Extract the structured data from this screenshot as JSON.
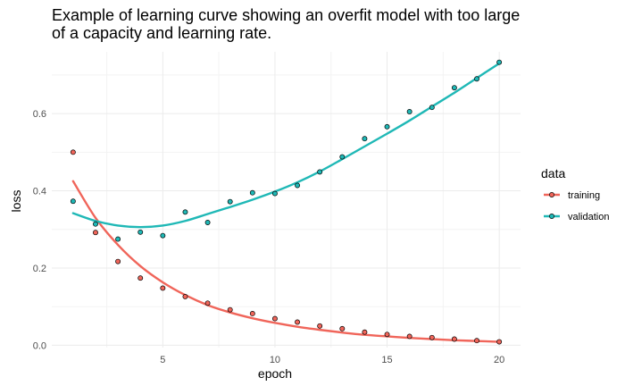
{
  "chart_data": {
    "type": "scatter",
    "title_lines": [
      "Example of learning curve showing an overfit model with too large",
      "of a capacity and learning rate."
    ],
    "xlabel": "epoch",
    "ylabel": "loss",
    "xlim": [
      0.05,
      20.95
    ],
    "ylim": [
      -0.006,
      0.76
    ],
    "x_ticks": [
      5,
      10,
      15,
      20
    ],
    "y_ticks": [
      0.0,
      0.2,
      0.4,
      0.6
    ],
    "y_tick_labels": [
      "0.0",
      "0.2",
      "0.4",
      "0.6"
    ],
    "grid": true,
    "legend": {
      "title": "data",
      "position": "right"
    },
    "series": [
      {
        "name": "training",
        "color": "#f0655a",
        "x": [
          1,
          2,
          3,
          4,
          5,
          6,
          7,
          8,
          9,
          10,
          11,
          12,
          13,
          14,
          15,
          16,
          17,
          18,
          19,
          20
        ],
        "values": [
          0.5,
          0.292,
          0.217,
          0.174,
          0.148,
          0.126,
          0.109,
          0.092,
          0.082,
          0.069,
          0.06,
          0.05,
          0.043,
          0.034,
          0.028,
          0.023,
          0.02,
          0.016,
          0.012,
          0.009
        ],
        "smooth": [
          0.425,
          0.33,
          0.26,
          0.205,
          0.163,
          0.13,
          0.104,
          0.085,
          0.07,
          0.058,
          0.048,
          0.04,
          0.033,
          0.027,
          0.023,
          0.019,
          0.016,
          0.013,
          0.011,
          0.009
        ]
      },
      {
        "name": "validation",
        "color": "#1fb8b6",
        "x": [
          1,
          2,
          3,
          4,
          5,
          6,
          7,
          8,
          9,
          10,
          11,
          12,
          13,
          14,
          15,
          16,
          17,
          18,
          19,
          20
        ],
        "values": [
          0.373,
          0.314,
          0.275,
          0.293,
          0.284,
          0.345,
          0.318,
          0.372,
          0.395,
          0.393,
          0.414,
          0.449,
          0.488,
          0.535,
          0.566,
          0.605,
          0.616,
          0.667,
          0.69,
          0.733
        ],
        "smooth": [
          0.342,
          0.322,
          0.31,
          0.306,
          0.31,
          0.322,
          0.34,
          0.358,
          0.377,
          0.398,
          0.422,
          0.45,
          0.482,
          0.515,
          0.548,
          0.582,
          0.618,
          0.654,
          0.692,
          0.73
        ]
      }
    ]
  }
}
